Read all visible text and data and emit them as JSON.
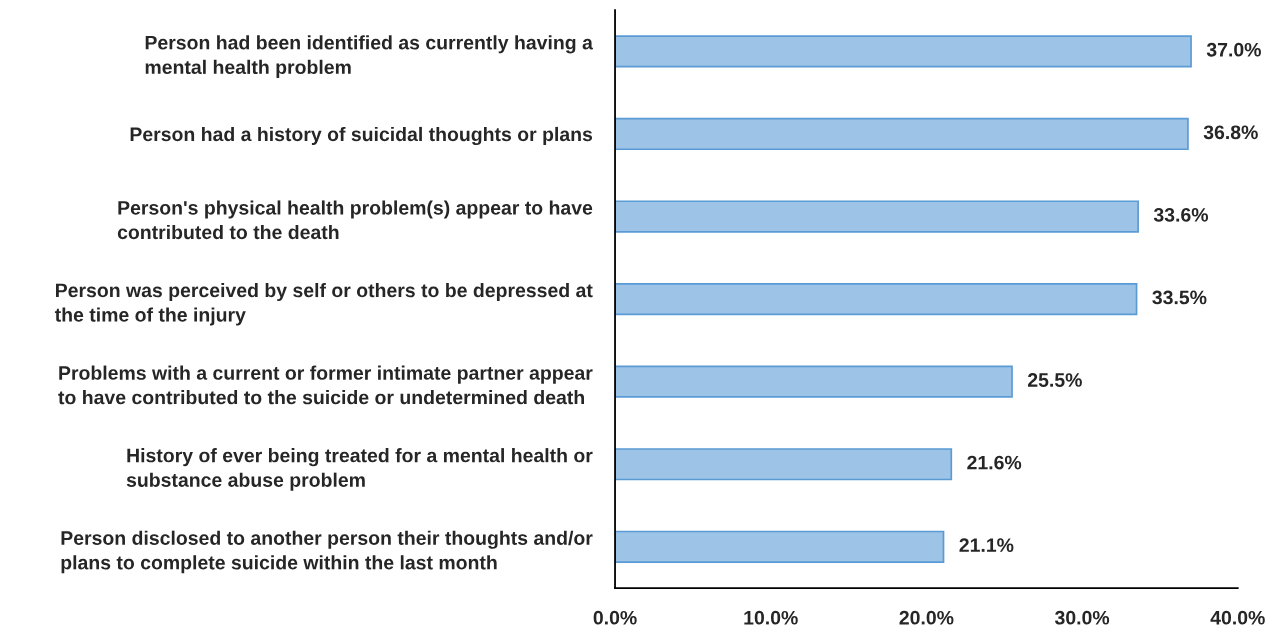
{
  "chart_data": {
    "type": "bar",
    "orientation": "horizontal",
    "categories": [
      "Person had been identified as currently having a\nmental health problem",
      "Person had a history of suicidal thoughts or plans",
      "Person's physical health problem(s) appear to have\ncontributed to the death",
      "Person was perceived by self or others to be depressed at\nthe time of the injury",
      "Problems with a current or former intimate partner appear\nto have contributed to the suicide or undetermined death",
      "History of ever being treated for a mental health or\nsubstance abuse problem",
      "Person disclosed to another person their thoughts and/or\nplans to complete suicide within the last month"
    ],
    "values": [
      37.0,
      36.8,
      33.6,
      33.5,
      25.5,
      21.6,
      21.1
    ],
    "value_labels": [
      "37.0%",
      "36.8%",
      "33.6%",
      "33.5%",
      "25.5%",
      "21.6%",
      "21.1%"
    ],
    "color": "#9dc3e6",
    "xlim": [
      0,
      40
    ],
    "xticks": [
      {
        "value": 0,
        "label": "0.0%"
      },
      {
        "value": 10,
        "label": "10.0%"
      },
      {
        "value": 20,
        "label": "20.0%"
      },
      {
        "value": 30,
        "label": "30.0%"
      },
      {
        "value": 40,
        "label": "40.0%"
      }
    ],
    "grid": false
  }
}
